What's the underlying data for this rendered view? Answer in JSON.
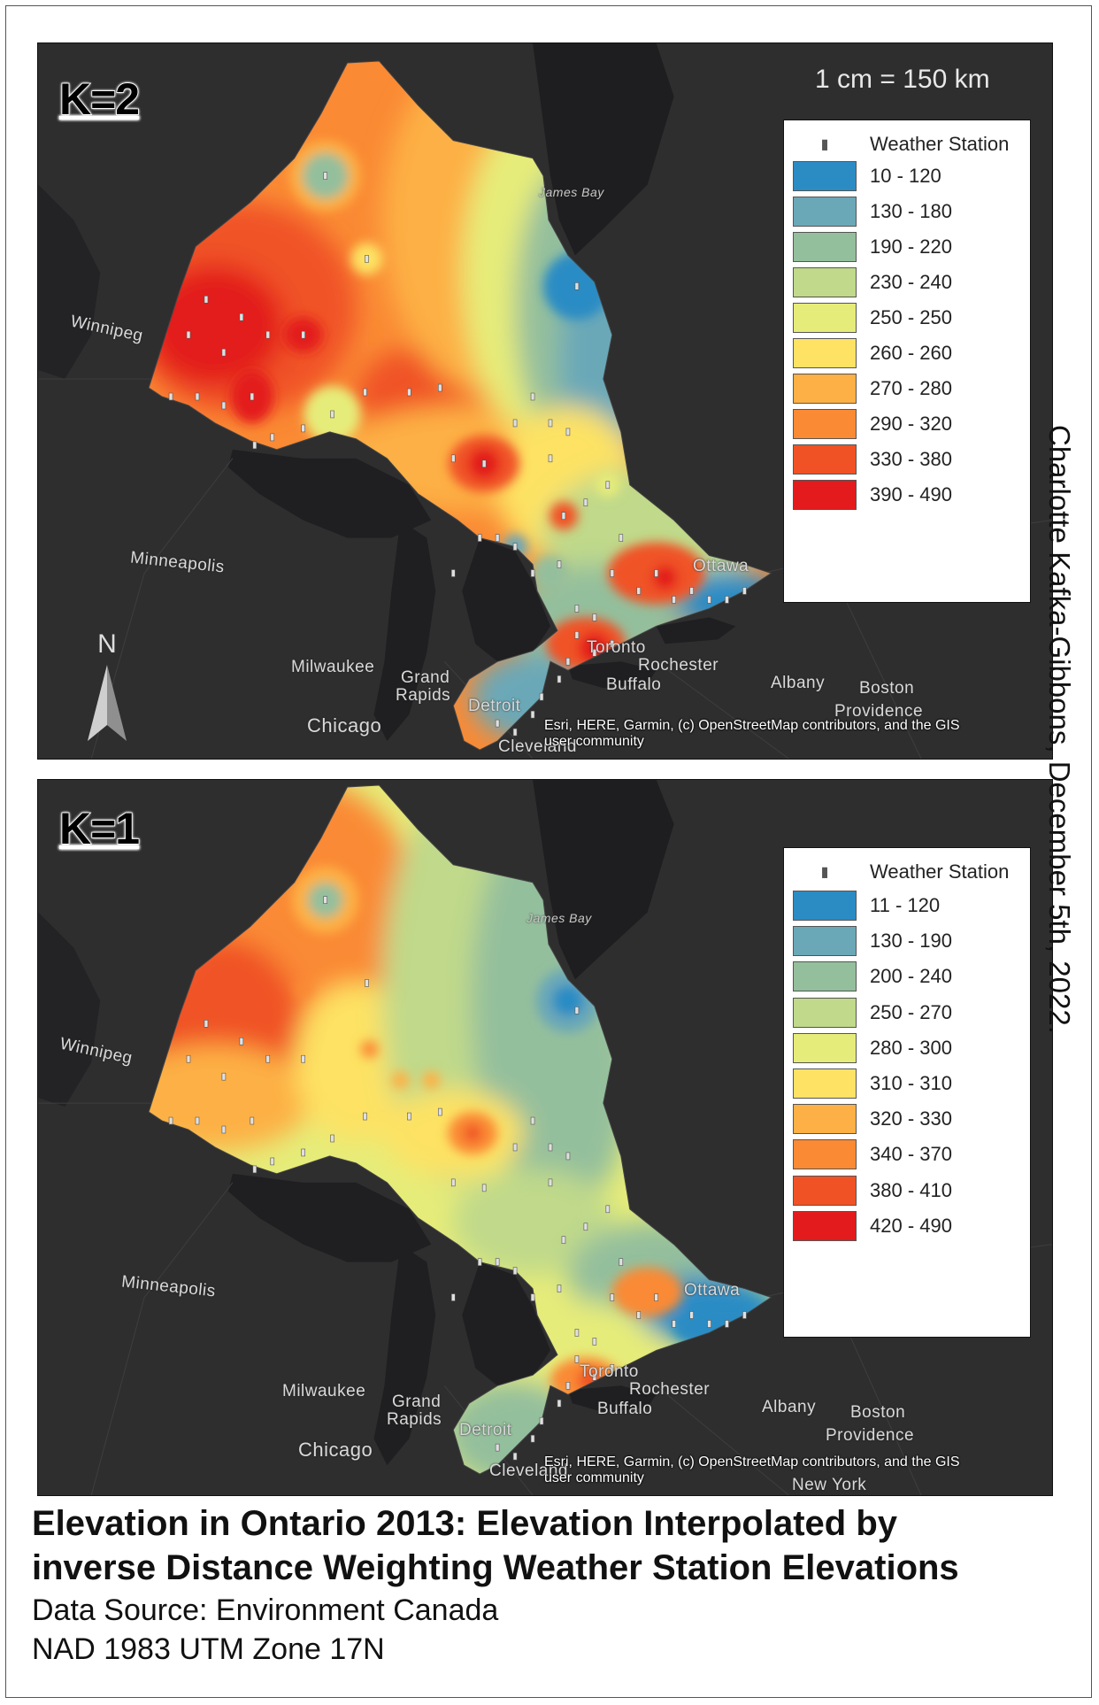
{
  "author": "Charlotte Kafka-Gibbons, December 5th, 2022.",
  "title_line1": "Elevation in Ontario 2013: Elevation Interpolated by",
  "title_line2": "inverse Distance Weighting Weather Station Elevations",
  "data_source": "Data Source: Environment Canada",
  "projection": "NAD 1983 UTM Zone 17N",
  "north_arrow": "N",
  "station_icon": "weather-station-icon",
  "panels": [
    {
      "k_label": "K=2",
      "scale": "1 cm = 150 km",
      "credit_line1": "Esri, HERE, Garmin, (c) OpenStreetMap contributors, and the GIS",
      "credit_line2": "user community",
      "legend_title": "Weather Station",
      "classes": [
        {
          "label": "10 - 120",
          "color": "#2b8cc4"
        },
        {
          "label": "130 - 180",
          "color": "#6aa8b8"
        },
        {
          "label": "190 - 220",
          "color": "#94bf9c"
        },
        {
          "label": "230 - 240",
          "color": "#c0d98a"
        },
        {
          "label": "250 - 250",
          "color": "#e6ec79"
        },
        {
          "label": "260 - 260",
          "color": "#fde264"
        },
        {
          "label": "270 - 280",
          "color": "#fdb045"
        },
        {
          "label": "290 - 320",
          "color": "#fa8a34"
        },
        {
          "label": "330 - 380",
          "color": "#f05226"
        },
        {
          "label": "390 - 490",
          "color": "#e31b1c"
        }
      ]
    },
    {
      "k_label": "K=1",
      "scale": "",
      "credit_line1": "Esri, HERE, Garmin, (c) OpenStreetMap contributors, and the GIS",
      "credit_line2": "user community",
      "legend_title": "Weather Station",
      "classes": [
        {
          "label": "11 - 120",
          "color": "#2b8cc4"
        },
        {
          "label": "130 - 190",
          "color": "#6aa8b8"
        },
        {
          "label": "200 - 240",
          "color": "#94bf9c"
        },
        {
          "label": "250 - 270",
          "color": "#c0d98a"
        },
        {
          "label": "280 - 300",
          "color": "#e6ec79"
        },
        {
          "label": "310 - 310",
          "color": "#fde264"
        },
        {
          "label": "320 - 330",
          "color": "#fdb045"
        },
        {
          "label": "340 - 370",
          "color": "#fa8a34"
        },
        {
          "label": "380 - 410",
          "color": "#f05226"
        },
        {
          "label": "420 - 490",
          "color": "#e31b1c"
        }
      ]
    }
  ],
  "basemap_labels": {
    "james_bay": "James Bay",
    "winnipeg": "Winnipeg",
    "minneapolis": "Minneapolis",
    "milwaukee": "Milwaukee",
    "grand_rapids_1": "Grand",
    "grand_rapids_2": "Rapids",
    "chicago": "Chicago",
    "detroit": "Detroit",
    "cleveland": "Cleveland",
    "toronto": "Toronto",
    "rochester": "Rochester",
    "buffalo": "Buffalo",
    "ottawa": "Ottawa",
    "albany": "Albany",
    "boston": "Boston",
    "providence": "Providence",
    "new_york": "New York"
  }
}
